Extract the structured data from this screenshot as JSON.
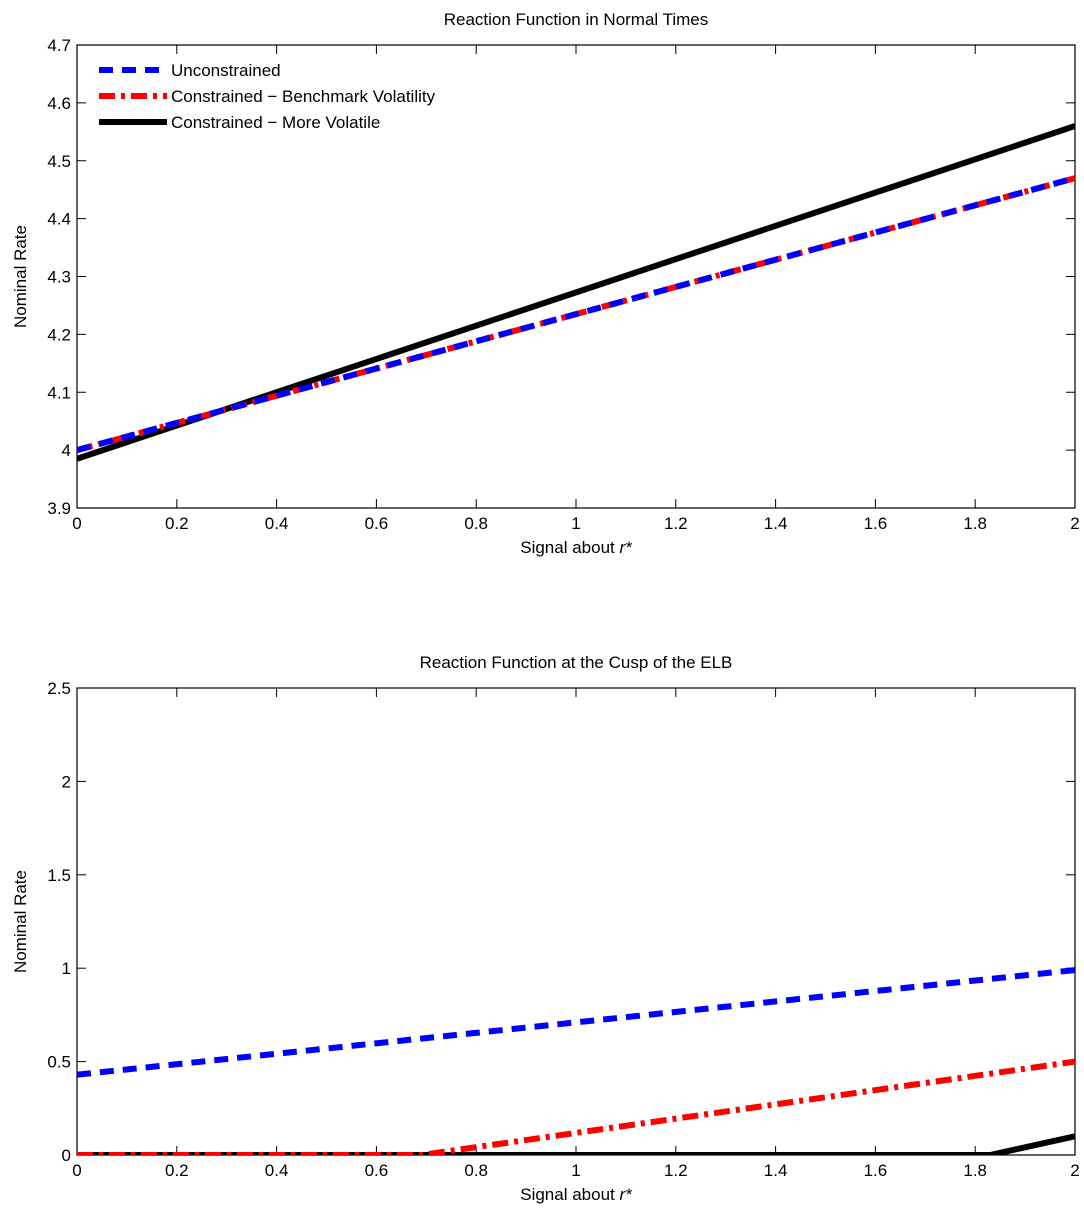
{
  "chart_data": [
    {
      "type": "line",
      "title": "Reaction Function in Normal Times",
      "xlabel": "Signal about r*",
      "ylabel": "Nominal Rate",
      "xlim": [
        0,
        2
      ],
      "ylim": [
        3.9,
        4.7
      ],
      "x_ticks": [
        "0",
        "0.2",
        "0.4",
        "0.6",
        "0.8",
        "1",
        "1.2",
        "1.4",
        "1.6",
        "1.8",
        "2"
      ],
      "y_ticks": [
        "3.9",
        "4",
        "4.1",
        "4.2",
        "4.3",
        "4.4",
        "4.5",
        "4.6",
        "4.7"
      ],
      "legend": "top-left",
      "grid": false,
      "series": [
        {
          "name": "Unconstrained",
          "color": "#0000ff",
          "style": "dashed",
          "x": [
            0,
            2
          ],
          "y": [
            4.0,
            4.47
          ]
        },
        {
          "name": "Constrained − Benchmark Volatility",
          "color": "#ff0000",
          "style": "dashdot",
          "x": [
            0,
            2
          ],
          "y": [
            4.0,
            4.47
          ]
        },
        {
          "name": "Constrained − More Volatile",
          "color": "#000000",
          "style": "solid",
          "x": [
            0,
            2
          ],
          "y": [
            3.985,
            4.56
          ]
        }
      ]
    },
    {
      "type": "line",
      "title": "Reaction Function at the Cusp of the ELB",
      "xlabel": "Signal about r*",
      "ylabel": "Nominal Rate",
      "xlim": [
        0,
        2
      ],
      "ylim": [
        0,
        2.5
      ],
      "x_ticks": [
        "0",
        "0.2",
        "0.4",
        "0.6",
        "0.8",
        "1",
        "1.2",
        "1.4",
        "1.6",
        "1.8",
        "2"
      ],
      "y_ticks": [
        "0",
        "0.5",
        "1",
        "1.5",
        "2",
        "2.5"
      ],
      "grid": false,
      "series": [
        {
          "name": "Unconstrained",
          "color": "#0000ff",
          "style": "dashed",
          "x": [
            0,
            2
          ],
          "y": [
            0.43,
            0.99
          ]
        },
        {
          "name": "Constrained − Benchmark Volatility",
          "color": "#ff0000",
          "style": "dashdot",
          "x": [
            0,
            0.69,
            2
          ],
          "y": [
            0,
            0,
            0.5
          ]
        },
        {
          "name": "Constrained − More Volatile",
          "color": "#000000",
          "style": "solid",
          "x": [
            0,
            1.83,
            2
          ],
          "y": [
            0,
            0,
            0.1
          ]
        }
      ]
    }
  ]
}
